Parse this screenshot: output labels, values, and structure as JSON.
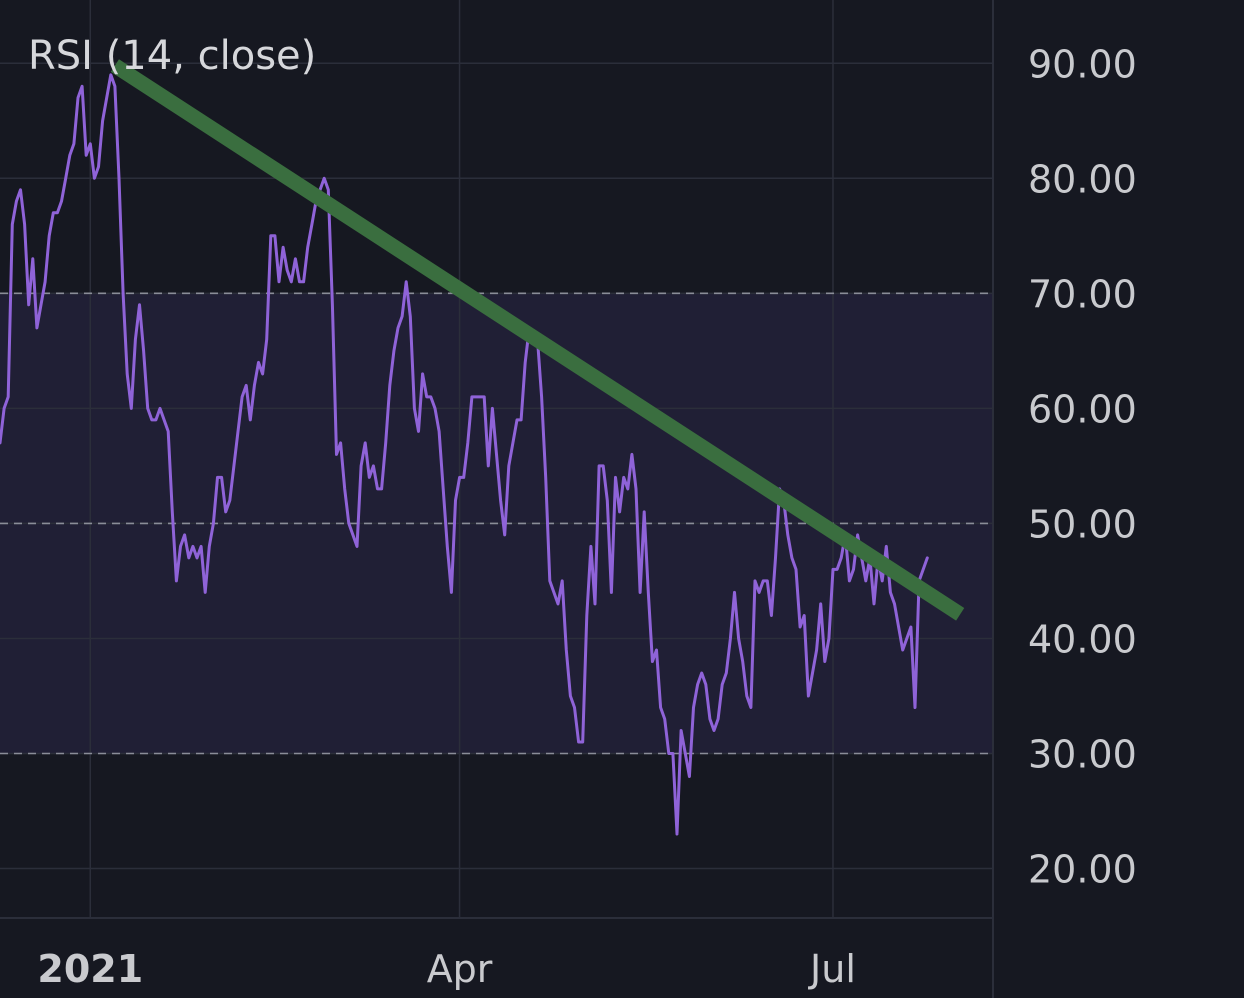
{
  "indicator": {
    "title": "RSI (14, close)"
  },
  "colors": {
    "background": "#161821",
    "band_fill": "#201f35",
    "grid": "#2b2e3a",
    "level_line": "#8a8d98",
    "rsi_line": "#8f63d8",
    "trendline": "#3a6e3f",
    "axis_text": "#c9cace",
    "axis_separator": "#2b2e3a"
  },
  "chart_data": {
    "type": "line",
    "title": "RSI (14, close)",
    "xlabel": "",
    "ylabel": "",
    "ylim": [
      15.7,
      95.5
    ],
    "xlim": [
      "2020-12-10",
      "2021-08-09"
    ],
    "y_ticks": [
      90,
      80,
      70,
      60,
      50,
      40,
      30,
      20
    ],
    "y_tick_labels": [
      "90.00",
      "80.00",
      "70.00",
      "60.00",
      "50.00",
      "40.00",
      "30.00",
      "20.00"
    ],
    "x_ticks": [
      {
        "date": "2021-01-01",
        "label": "2021",
        "bold": true
      },
      {
        "date": "2021-04-01",
        "label": "Apr",
        "bold": false
      },
      {
        "date": "2021-07-01",
        "label": "Jul",
        "bold": false
      }
    ],
    "levels": [
      70,
      50,
      30
    ],
    "band": [
      30,
      70
    ],
    "grid": true,
    "series": [
      {
        "points": [
          [
            "2020-12-10",
            57
          ],
          [
            "2020-12-11",
            60
          ],
          [
            "2020-12-12",
            61
          ],
          [
            "2020-12-13",
            76
          ],
          [
            "2020-12-14",
            78
          ],
          [
            "2020-12-15",
            79
          ],
          [
            "2020-12-16",
            76
          ],
          [
            "2020-12-17",
            69
          ],
          [
            "2020-12-18",
            73
          ],
          [
            "2020-12-19",
            67
          ],
          [
            "2020-12-20",
            69
          ],
          [
            "2020-12-21",
            71
          ],
          [
            "2020-12-22",
            75
          ],
          [
            "2020-12-23",
            77
          ],
          [
            "2020-12-24",
            77
          ],
          [
            "2020-12-25",
            78
          ],
          [
            "2020-12-26",
            80
          ],
          [
            "2020-12-27",
            82
          ],
          [
            "2020-12-28",
            83
          ],
          [
            "2020-12-29",
            87
          ],
          [
            "2020-12-30",
            88
          ],
          [
            "2020-12-31",
            82
          ],
          [
            "2021-01-01",
            83
          ],
          [
            "2021-01-02",
            80
          ],
          [
            "2021-01-03",
            81
          ],
          [
            "2021-01-04",
            85
          ],
          [
            "2021-01-05",
            87
          ],
          [
            "2021-01-06",
            89
          ],
          [
            "2021-01-07",
            88
          ],
          [
            "2021-01-08",
            80
          ],
          [
            "2021-01-09",
            70
          ],
          [
            "2021-01-10",
            63
          ],
          [
            "2021-01-11",
            60
          ],
          [
            "2021-01-12",
            66
          ],
          [
            "2021-01-13",
            69
          ],
          [
            "2021-01-14",
            65
          ],
          [
            "2021-01-15",
            60
          ],
          [
            "2021-01-16",
            59
          ],
          [
            "2021-01-17",
            59
          ],
          [
            "2021-01-18",
            60
          ],
          [
            "2021-01-19",
            59
          ],
          [
            "2021-01-20",
            58
          ],
          [
            "2021-01-21",
            51
          ],
          [
            "2021-01-22",
            45
          ],
          [
            "2021-01-23",
            48
          ],
          [
            "2021-01-24",
            49
          ],
          [
            "2021-01-25",
            47
          ],
          [
            "2021-01-26",
            48
          ],
          [
            "2021-01-27",
            47
          ],
          [
            "2021-01-28",
            48
          ],
          [
            "2021-01-29",
            44
          ],
          [
            "2021-01-30",
            48
          ],
          [
            "2021-01-31",
            50
          ],
          [
            "2021-02-01",
            54
          ],
          [
            "2021-02-02",
            54
          ],
          [
            "2021-02-03",
            51
          ],
          [
            "2021-02-04",
            52
          ],
          [
            "2021-02-05",
            55
          ],
          [
            "2021-02-06",
            58
          ],
          [
            "2021-02-07",
            61
          ],
          [
            "2021-02-08",
            62
          ],
          [
            "2021-02-09",
            59
          ],
          [
            "2021-02-10",
            62
          ],
          [
            "2021-02-11",
            64
          ],
          [
            "2021-02-12",
            63
          ],
          [
            "2021-02-13",
            66
          ],
          [
            "2021-02-14",
            75
          ],
          [
            "2021-02-15",
            75
          ],
          [
            "2021-02-16",
            71
          ],
          [
            "2021-02-17",
            74
          ],
          [
            "2021-02-18",
            72
          ],
          [
            "2021-02-19",
            71
          ],
          [
            "2021-02-20",
            73
          ],
          [
            "2021-02-21",
            71
          ],
          [
            "2021-02-22",
            71
          ],
          [
            "2021-02-23",
            74
          ],
          [
            "2021-02-24",
            76
          ],
          [
            "2021-02-25",
            78
          ],
          [
            "2021-02-26",
            79
          ],
          [
            "2021-02-27",
            80
          ],
          [
            "2021-02-28",
            79
          ],
          [
            "2021-03-01",
            69
          ],
          [
            "2021-03-02",
            56
          ],
          [
            "2021-03-03",
            57
          ],
          [
            "2021-03-04",
            53
          ],
          [
            "2021-03-05",
            50
          ],
          [
            "2021-03-06",
            49
          ],
          [
            "2021-03-07",
            48
          ],
          [
            "2021-03-08",
            55
          ],
          [
            "2021-03-09",
            57
          ],
          [
            "2021-03-10",
            54
          ],
          [
            "2021-03-11",
            55
          ],
          [
            "2021-03-12",
            53
          ],
          [
            "2021-03-13",
            53
          ],
          [
            "2021-03-14",
            57
          ],
          [
            "2021-03-15",
            62
          ],
          [
            "2021-03-16",
            65
          ],
          [
            "2021-03-17",
            67
          ],
          [
            "2021-03-18",
            68
          ],
          [
            "2021-03-19",
            71
          ],
          [
            "2021-03-20",
            68
          ],
          [
            "2021-03-21",
            60
          ],
          [
            "2021-03-22",
            58
          ],
          [
            "2021-03-23",
            63
          ],
          [
            "2021-03-24",
            61
          ],
          [
            "2021-03-25",
            61
          ],
          [
            "2021-03-26",
            60
          ],
          [
            "2021-03-27",
            58
          ],
          [
            "2021-03-28",
            53
          ],
          [
            "2021-03-29",
            48
          ],
          [
            "2021-03-30",
            44
          ],
          [
            "2021-03-31",
            52
          ],
          [
            "2021-04-01",
            54
          ],
          [
            "2021-04-02",
            54
          ],
          [
            "2021-04-03",
            57
          ],
          [
            "2021-04-04",
            61
          ],
          [
            "2021-04-05",
            61
          ],
          [
            "2021-04-06",
            61
          ],
          [
            "2021-04-07",
            61
          ],
          [
            "2021-04-08",
            55
          ],
          [
            "2021-04-09",
            60
          ],
          [
            "2021-04-10",
            56
          ],
          [
            "2021-04-11",
            52
          ],
          [
            "2021-04-12",
            49
          ],
          [
            "2021-04-13",
            55
          ],
          [
            "2021-04-14",
            57
          ],
          [
            "2021-04-15",
            59
          ],
          [
            "2021-04-16",
            59
          ],
          [
            "2021-04-17",
            64
          ],
          [
            "2021-04-18",
            67
          ],
          [
            "2021-04-19",
            66
          ],
          [
            "2021-04-20",
            66
          ],
          [
            "2021-04-21",
            61
          ],
          [
            "2021-04-22",
            54
          ],
          [
            "2021-04-23",
            45
          ],
          [
            "2021-04-24",
            44
          ],
          [
            "2021-04-25",
            43
          ],
          [
            "2021-04-26",
            45
          ],
          [
            "2021-04-27",
            39
          ],
          [
            "2021-04-28",
            35
          ],
          [
            "2021-04-29",
            34
          ],
          [
            "2021-04-30",
            31
          ],
          [
            "2021-05-01",
            31
          ],
          [
            "2021-05-02",
            42
          ],
          [
            "2021-05-03",
            48
          ],
          [
            "2021-05-04",
            43
          ],
          [
            "2021-05-05",
            55
          ],
          [
            "2021-05-06",
            55
          ],
          [
            "2021-05-07",
            52
          ],
          [
            "2021-05-08",
            44
          ],
          [
            "2021-05-09",
            54
          ],
          [
            "2021-05-10",
            51
          ],
          [
            "2021-05-11",
            54
          ],
          [
            "2021-05-12",
            53
          ],
          [
            "2021-05-13",
            56
          ],
          [
            "2021-05-14",
            53
          ],
          [
            "2021-05-15",
            44
          ],
          [
            "2021-05-16",
            51
          ],
          [
            "2021-05-17",
            44
          ],
          [
            "2021-05-18",
            38
          ],
          [
            "2021-05-19",
            39
          ],
          [
            "2021-05-20",
            34
          ],
          [
            "2021-05-21",
            33
          ],
          [
            "2021-05-22",
            30
          ],
          [
            "2021-05-23",
            30
          ],
          [
            "2021-05-24",
            23
          ],
          [
            "2021-05-25",
            32
          ],
          [
            "2021-05-26",
            30
          ],
          [
            "2021-05-27",
            28
          ],
          [
            "2021-05-28",
            34
          ],
          [
            "2021-05-29",
            36
          ],
          [
            "2021-05-30",
            37
          ],
          [
            "2021-05-31",
            36
          ],
          [
            "2021-06-01",
            33
          ],
          [
            "2021-06-02",
            32
          ],
          [
            "2021-06-03",
            33
          ],
          [
            "2021-06-04",
            36
          ],
          [
            "2021-06-05",
            37
          ],
          [
            "2021-06-06",
            40
          ],
          [
            "2021-06-07",
            44
          ],
          [
            "2021-06-08",
            40
          ],
          [
            "2021-06-09",
            38
          ],
          [
            "2021-06-10",
            35
          ],
          [
            "2021-06-11",
            34
          ],
          [
            "2021-06-12",
            45
          ],
          [
            "2021-06-13",
            44
          ],
          [
            "2021-06-14",
            45
          ],
          [
            "2021-06-15",
            45
          ],
          [
            "2021-06-16",
            42
          ],
          [
            "2021-06-17",
            47
          ],
          [
            "2021-06-18",
            53
          ],
          [
            "2021-06-19",
            52
          ],
          [
            "2021-06-20",
            49
          ],
          [
            "2021-06-21",
            47
          ],
          [
            "2021-06-22",
            46
          ],
          [
            "2021-06-23",
            41
          ],
          [
            "2021-06-24",
            42
          ],
          [
            "2021-06-25",
            35
          ],
          [
            "2021-06-26",
            37
          ],
          [
            "2021-06-27",
            39
          ],
          [
            "2021-06-28",
            43
          ],
          [
            "2021-06-29",
            38
          ],
          [
            "2021-06-30",
            40
          ],
          [
            "2021-07-01",
            46
          ],
          [
            "2021-07-02",
            46
          ],
          [
            "2021-07-03",
            47
          ],
          [
            "2021-07-04",
            49
          ],
          [
            "2021-07-05",
            45
          ],
          [
            "2021-07-06",
            46
          ],
          [
            "2021-07-07",
            49
          ],
          [
            "2021-07-08",
            47
          ],
          [
            "2021-07-09",
            45
          ],
          [
            "2021-07-10",
            47
          ],
          [
            "2021-07-11",
            43
          ],
          [
            "2021-07-12",
            47
          ],
          [
            "2021-07-13",
            45
          ],
          [
            "2021-07-14",
            48
          ],
          [
            "2021-07-15",
            44
          ],
          [
            "2021-07-16",
            43
          ],
          [
            "2021-07-17",
            41
          ],
          [
            "2021-07-18",
            39
          ],
          [
            "2021-07-19",
            40
          ],
          [
            "2021-07-20",
            41
          ],
          [
            "2021-07-21",
            34
          ],
          [
            "2021-07-22",
            45
          ],
          [
            "2021-07-23",
            46
          ],
          [
            "2021-07-24",
            47
          ]
        ]
      }
    ],
    "trendline": {
      "from": [
        "2021-01-07",
        89.8
      ],
      "to": [
        "2021-08-01",
        42.1
      ]
    }
  }
}
